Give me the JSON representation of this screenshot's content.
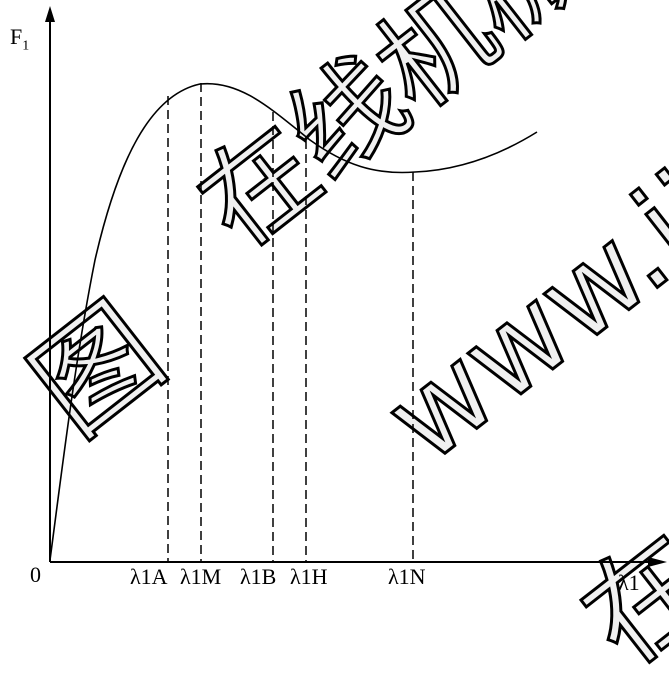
{
  "diagram": {
    "y_axis_label": "F",
    "y_axis_sub": "1",
    "x_axis_label": "λ1",
    "origin_label": "0",
    "markers": [
      {
        "id": "a",
        "label": "λ1A"
      },
      {
        "id": "m",
        "label": "λ1M"
      },
      {
        "id": "b",
        "label": "λ1B"
      },
      {
        "id": "h",
        "label": "λ1H"
      },
      {
        "id": "n",
        "label": "λ1N"
      }
    ]
  },
  "watermark": {
    "line1": "在线机械设计",
    "line2": "www.jixie",
    "line3": "图",
    "line4": "在线"
  }
}
